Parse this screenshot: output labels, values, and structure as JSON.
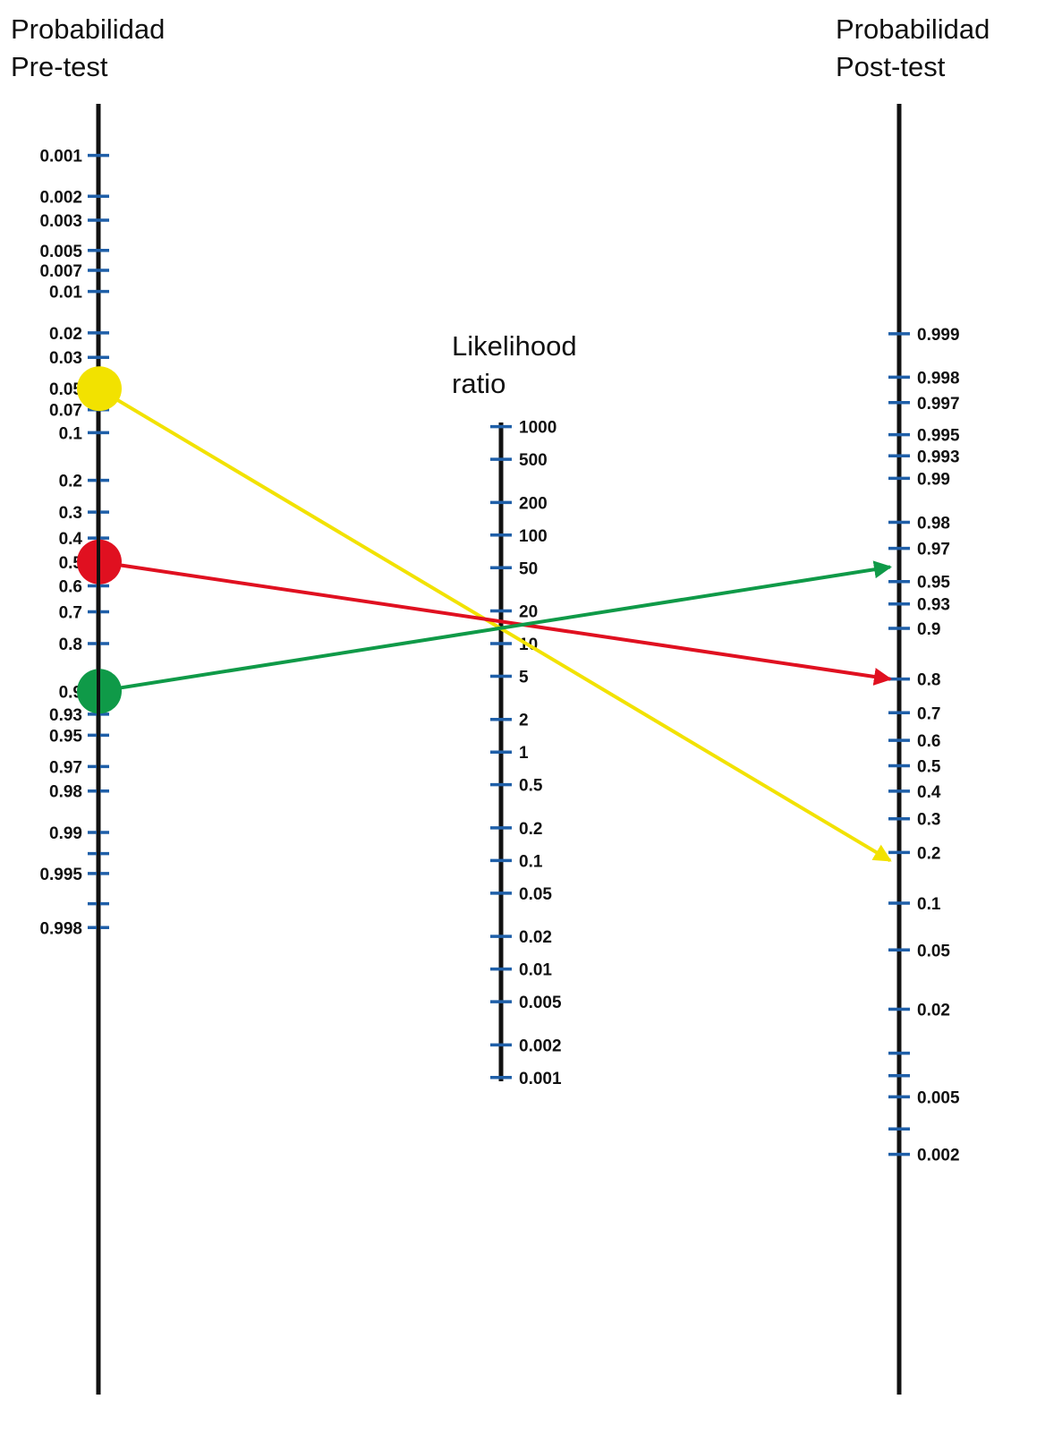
{
  "titles": {
    "pretest": [
      "Probabilidad",
      "Pre-test"
    ],
    "lr": [
      "Likelihood",
      "ratio"
    ],
    "posttest": [
      "Probabilidad",
      "Post-test"
    ]
  },
  "colors": {
    "axis": "#111111",
    "tick": "#1f5fa8",
    "yellow": "#f2e200",
    "red": "#e01020",
    "green": "#0f9a48"
  },
  "axes": {
    "pretest_ticks": [
      {
        "label": "0.001",
        "v": 0.001
      },
      {
        "label": "0.002",
        "v": 0.002
      },
      {
        "label": "0.003",
        "v": 0.003
      },
      {
        "label": "0.005",
        "v": 0.005
      },
      {
        "label": "0.007",
        "v": 0.007
      },
      {
        "label": "0.01",
        "v": 0.01
      },
      {
        "label": "0.02",
        "v": 0.02
      },
      {
        "label": "0.03",
        "v": 0.03
      },
      {
        "label": "0.05",
        "v": 0.05
      },
      {
        "label": "0.07",
        "v": 0.07
      },
      {
        "label": "0.1",
        "v": 0.1
      },
      {
        "label": "0.2",
        "v": 0.2
      },
      {
        "label": "0.3",
        "v": 0.3
      },
      {
        "label": "0.4",
        "v": 0.4
      },
      {
        "label": "0.5",
        "v": 0.5
      },
      {
        "label": "0.6",
        "v": 0.6
      },
      {
        "label": "0.7",
        "v": 0.7
      },
      {
        "label": "0.8",
        "v": 0.8
      },
      {
        "label": "0.9",
        "v": 0.9
      },
      {
        "label": "0.93",
        "v": 0.93
      },
      {
        "label": "0.95",
        "v": 0.95
      },
      {
        "label": "0.97",
        "v": 0.97
      },
      {
        "label": "0.98",
        "v": 0.98
      },
      {
        "label": "0.99",
        "v": 0.99
      },
      {
        "label": "",
        "v": 0.993
      },
      {
        "label": "0.995",
        "v": 0.995
      },
      {
        "label": "",
        "v": 0.997
      },
      {
        "label": "0.998",
        "v": 0.998
      }
    ],
    "lr_ticks": [
      {
        "label": "1000",
        "v": 1000
      },
      {
        "label": "500",
        "v": 500
      },
      {
        "label": "200",
        "v": 200
      },
      {
        "label": "100",
        "v": 100
      },
      {
        "label": "50",
        "v": 50
      },
      {
        "label": "20",
        "v": 20
      },
      {
        "label": "10",
        "v": 10
      },
      {
        "label": "5",
        "v": 5
      },
      {
        "label": "2",
        "v": 2
      },
      {
        "label": "1",
        "v": 1
      },
      {
        "label": "0.5",
        "v": 0.5
      },
      {
        "label": "0.2",
        "v": 0.2
      },
      {
        "label": "0.1",
        "v": 0.1
      },
      {
        "label": "0.05",
        "v": 0.05
      },
      {
        "label": "0.02",
        "v": 0.02
      },
      {
        "label": "0.01",
        "v": 0.01
      },
      {
        "label": "0.005",
        "v": 0.005
      },
      {
        "label": "0.002",
        "v": 0.002
      },
      {
        "label": "0.001",
        "v": 0.001
      }
    ],
    "posttest_ticks": [
      {
        "label": "0.999",
        "v": 0.999
      },
      {
        "label": "0.998",
        "v": 0.998
      },
      {
        "label": "0.997",
        "v": 0.997
      },
      {
        "label": "0.995",
        "v": 0.995
      },
      {
        "label": "0.993",
        "v": 0.993
      },
      {
        "label": "0.99",
        "v": 0.99
      },
      {
        "label": "0.98",
        "v": 0.98
      },
      {
        "label": "0.97",
        "v": 0.97
      },
      {
        "label": "0.95",
        "v": 0.95
      },
      {
        "label": "0.93",
        "v": 0.93
      },
      {
        "label": "0.9",
        "v": 0.9
      },
      {
        "label": "0.8",
        "v": 0.8
      },
      {
        "label": "0.7",
        "v": 0.7
      },
      {
        "label": "0.6",
        "v": 0.6
      },
      {
        "label": "0.5",
        "v": 0.5
      },
      {
        "label": "0.4",
        "v": 0.4
      },
      {
        "label": "0.3",
        "v": 0.3
      },
      {
        "label": "0.2",
        "v": 0.2
      },
      {
        "label": "0.1",
        "v": 0.1
      },
      {
        "label": "0.05",
        "v": 0.05
      },
      {
        "label": "0.02",
        "v": 0.02
      },
      {
        "label": "",
        "v": 0.01
      },
      {
        "label": "",
        "v": 0.007
      },
      {
        "label": "0.005",
        "v": 0.005
      },
      {
        "label": "",
        "v": 0.003
      },
      {
        "label": "0.002",
        "v": 0.002
      }
    ]
  },
  "lines": [
    {
      "color": "yellow",
      "pretest": 0.05,
      "lr": 3,
      "posttest": 0.18
    },
    {
      "color": "red",
      "pretest": 0.5,
      "lr": 3,
      "posttest": 0.8
    },
    {
      "color": "green",
      "pretest": 0.9,
      "lr": 3,
      "posttest": 0.96
    }
  ]
}
